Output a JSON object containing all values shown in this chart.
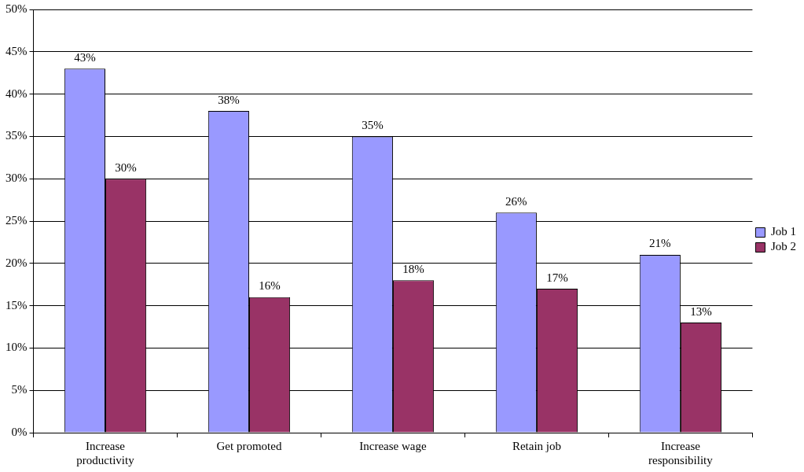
{
  "chart_data": {
    "type": "bar",
    "categories": [
      "Increase productivity",
      "Get promoted",
      "Increase wage",
      "Retain job",
      "Increase responsibility"
    ],
    "series": [
      {
        "name": "Job 1",
        "color": "#9999ff",
        "values": [
          43,
          38,
          35,
          26,
          21
        ],
        "value_labels": [
          "43%",
          "38%",
          "35%",
          "26%",
          "21%"
        ]
      },
      {
        "name": "Job 2",
        "color": "#993366",
        "values": [
          30,
          16,
          18,
          17,
          13
        ],
        "value_labels": [
          "30%",
          "16%",
          "18%",
          "17%",
          "13%"
        ]
      }
    ],
    "ylim": [
      0,
      50
    ],
    "yticks": [
      {
        "value": 0,
        "label": "0%"
      },
      {
        "value": 5,
        "label": "5%"
      },
      {
        "value": 10,
        "label": "10%"
      },
      {
        "value": 15,
        "label": "15%"
      },
      {
        "value": 20,
        "label": "20%"
      },
      {
        "value": 25,
        "label": "25%"
      },
      {
        "value": 30,
        "label": "30%"
      },
      {
        "value": 35,
        "label": "35%"
      },
      {
        "value": 40,
        "label": "40%"
      },
      {
        "value": 45,
        "label": "45%"
      },
      {
        "value": 50,
        "label": "50%"
      }
    ],
    "grid": "y",
    "legend": "right"
  }
}
